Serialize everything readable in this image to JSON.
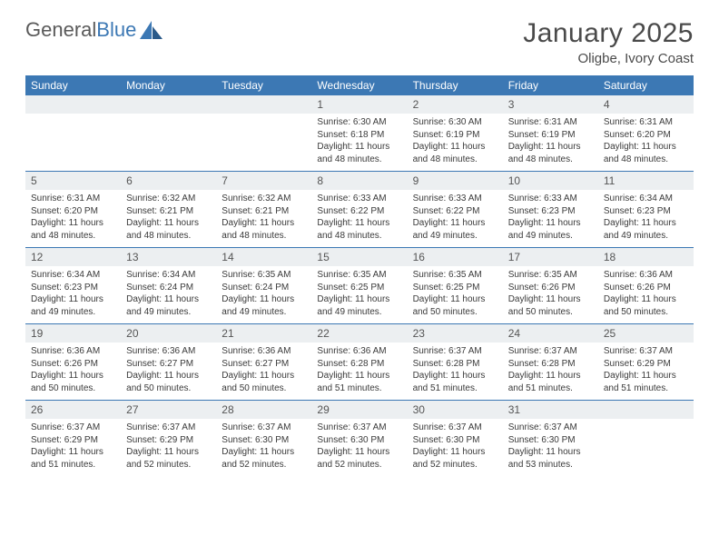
{
  "brand": {
    "name_gray": "General",
    "name_blue": "Blue"
  },
  "title": {
    "month": "January 2025",
    "location": "Oligbe, Ivory Coast"
  },
  "colors": {
    "header_bg": "#3c78b4",
    "daynum_bg": "#eceff1",
    "row_border": "#3c78b4",
    "text": "#333333",
    "logo_gray": "#5a5a5a",
    "logo_blue": "#3c78b4"
  },
  "weekdays": [
    "Sunday",
    "Monday",
    "Tuesday",
    "Wednesday",
    "Thursday",
    "Friday",
    "Saturday"
  ],
  "weeks": [
    [
      null,
      null,
      null,
      {
        "n": "1",
        "sr": "6:30 AM",
        "ss": "6:18 PM",
        "dl": "11 hours and 48 minutes."
      },
      {
        "n": "2",
        "sr": "6:30 AM",
        "ss": "6:19 PM",
        "dl": "11 hours and 48 minutes."
      },
      {
        "n": "3",
        "sr": "6:31 AM",
        "ss": "6:19 PM",
        "dl": "11 hours and 48 minutes."
      },
      {
        "n": "4",
        "sr": "6:31 AM",
        "ss": "6:20 PM",
        "dl": "11 hours and 48 minutes."
      }
    ],
    [
      {
        "n": "5",
        "sr": "6:31 AM",
        "ss": "6:20 PM",
        "dl": "11 hours and 48 minutes."
      },
      {
        "n": "6",
        "sr": "6:32 AM",
        "ss": "6:21 PM",
        "dl": "11 hours and 48 minutes."
      },
      {
        "n": "7",
        "sr": "6:32 AM",
        "ss": "6:21 PM",
        "dl": "11 hours and 48 minutes."
      },
      {
        "n": "8",
        "sr": "6:33 AM",
        "ss": "6:22 PM",
        "dl": "11 hours and 48 minutes."
      },
      {
        "n": "9",
        "sr": "6:33 AM",
        "ss": "6:22 PM",
        "dl": "11 hours and 49 minutes."
      },
      {
        "n": "10",
        "sr": "6:33 AM",
        "ss": "6:23 PM",
        "dl": "11 hours and 49 minutes."
      },
      {
        "n": "11",
        "sr": "6:34 AM",
        "ss": "6:23 PM",
        "dl": "11 hours and 49 minutes."
      }
    ],
    [
      {
        "n": "12",
        "sr": "6:34 AM",
        "ss": "6:23 PM",
        "dl": "11 hours and 49 minutes."
      },
      {
        "n": "13",
        "sr": "6:34 AM",
        "ss": "6:24 PM",
        "dl": "11 hours and 49 minutes."
      },
      {
        "n": "14",
        "sr": "6:35 AM",
        "ss": "6:24 PM",
        "dl": "11 hours and 49 minutes."
      },
      {
        "n": "15",
        "sr": "6:35 AM",
        "ss": "6:25 PM",
        "dl": "11 hours and 49 minutes."
      },
      {
        "n": "16",
        "sr": "6:35 AM",
        "ss": "6:25 PM",
        "dl": "11 hours and 50 minutes."
      },
      {
        "n": "17",
        "sr": "6:35 AM",
        "ss": "6:26 PM",
        "dl": "11 hours and 50 minutes."
      },
      {
        "n": "18",
        "sr": "6:36 AM",
        "ss": "6:26 PM",
        "dl": "11 hours and 50 minutes."
      }
    ],
    [
      {
        "n": "19",
        "sr": "6:36 AM",
        "ss": "6:26 PM",
        "dl": "11 hours and 50 minutes."
      },
      {
        "n": "20",
        "sr": "6:36 AM",
        "ss": "6:27 PM",
        "dl": "11 hours and 50 minutes."
      },
      {
        "n": "21",
        "sr": "6:36 AM",
        "ss": "6:27 PM",
        "dl": "11 hours and 50 minutes."
      },
      {
        "n": "22",
        "sr": "6:36 AM",
        "ss": "6:28 PM",
        "dl": "11 hours and 51 minutes."
      },
      {
        "n": "23",
        "sr": "6:37 AM",
        "ss": "6:28 PM",
        "dl": "11 hours and 51 minutes."
      },
      {
        "n": "24",
        "sr": "6:37 AM",
        "ss": "6:28 PM",
        "dl": "11 hours and 51 minutes."
      },
      {
        "n": "25",
        "sr": "6:37 AM",
        "ss": "6:29 PM",
        "dl": "11 hours and 51 minutes."
      }
    ],
    [
      {
        "n": "26",
        "sr": "6:37 AM",
        "ss": "6:29 PM",
        "dl": "11 hours and 51 minutes."
      },
      {
        "n": "27",
        "sr": "6:37 AM",
        "ss": "6:29 PM",
        "dl": "11 hours and 52 minutes."
      },
      {
        "n": "28",
        "sr": "6:37 AM",
        "ss": "6:30 PM",
        "dl": "11 hours and 52 minutes."
      },
      {
        "n": "29",
        "sr": "6:37 AM",
        "ss": "6:30 PM",
        "dl": "11 hours and 52 minutes."
      },
      {
        "n": "30",
        "sr": "6:37 AM",
        "ss": "6:30 PM",
        "dl": "11 hours and 52 minutes."
      },
      {
        "n": "31",
        "sr": "6:37 AM",
        "ss": "6:30 PM",
        "dl": "11 hours and 53 minutes."
      },
      null
    ]
  ],
  "labels": {
    "sunrise": "Sunrise:",
    "sunset": "Sunset:",
    "daylight": "Daylight:"
  }
}
